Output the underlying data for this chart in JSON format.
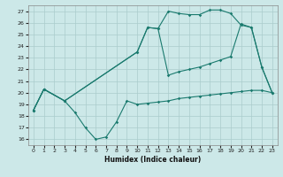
{
  "xlabel": "Humidex (Indice chaleur)",
  "bg_color": "#cce8e8",
  "grid_color": "#aacccc",
  "line_color": "#1a7a6e",
  "xlim": [
    -0.5,
    23.5
  ],
  "ylim": [
    15.5,
    27.5
  ],
  "xticks": [
    0,
    1,
    2,
    3,
    4,
    5,
    6,
    7,
    8,
    9,
    10,
    11,
    12,
    13,
    14,
    15,
    16,
    17,
    18,
    19,
    20,
    21,
    22,
    23
  ],
  "yticks": [
    16,
    17,
    18,
    19,
    20,
    21,
    22,
    23,
    24,
    25,
    26,
    27
  ],
  "line1_x": [
    0,
    1,
    3,
    4,
    5,
    6,
    7,
    8,
    9,
    10,
    11,
    12,
    13,
    14,
    15,
    16,
    17,
    18,
    19,
    20,
    21,
    22,
    23
  ],
  "line1_y": [
    18.5,
    20.3,
    19.3,
    18.3,
    17.0,
    16.0,
    16.2,
    17.5,
    19.3,
    19.0,
    19.1,
    19.2,
    19.3,
    19.5,
    19.6,
    19.7,
    19.8,
    19.9,
    20.0,
    20.1,
    20.2,
    20.2,
    20.0
  ],
  "line2_x": [
    0,
    1,
    3,
    10,
    11,
    12,
    13,
    14,
    15,
    16,
    17,
    18,
    19,
    20,
    21,
    22,
    23
  ],
  "line2_y": [
    18.5,
    20.3,
    19.3,
    23.5,
    25.6,
    25.5,
    27.0,
    26.8,
    26.7,
    26.7,
    27.1,
    27.1,
    26.8,
    25.8,
    25.6,
    22.2,
    20.0
  ],
  "line3_x": [
    0,
    1,
    3,
    10,
    11,
    12,
    13,
    14,
    15,
    16,
    17,
    18,
    19,
    20,
    21,
    22,
    23
  ],
  "line3_y": [
    18.5,
    20.3,
    19.3,
    23.5,
    25.6,
    25.5,
    21.5,
    21.8,
    22.0,
    22.2,
    22.5,
    22.8,
    23.1,
    25.9,
    25.6,
    22.2,
    20.0
  ]
}
